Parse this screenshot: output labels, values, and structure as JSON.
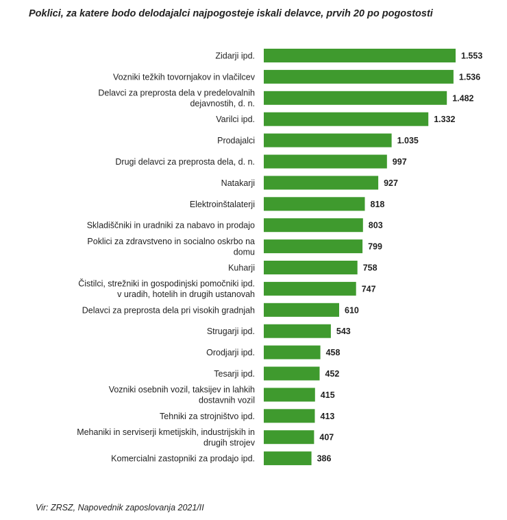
{
  "chart_data": {
    "type": "bar",
    "orientation": "horizontal",
    "title": "Poklici, za katere bodo delodajalci najpogosteje iskali delavce, prvih 20 po pogostosti",
    "categories": [
      [
        "Zidarji ipd."
      ],
      [
        "Vozniki težkih tovornjakov in vlačilcev"
      ],
      [
        "Delavci za preprosta dela v predelovalnih",
        "dejavnostih, d. n."
      ],
      [
        "Varilci ipd."
      ],
      [
        "Prodajalci"
      ],
      [
        "Drugi delavci za preprosta dela, d. n."
      ],
      [
        "Natakarji"
      ],
      [
        "Elektroinštalaterji"
      ],
      [
        "Skladiščniki in uradniki za nabavo in prodajo"
      ],
      [
        "Poklici za zdravstveno in socialno oskrbo na",
        "domu"
      ],
      [
        "Kuharji"
      ],
      [
        "Čistilci, strežniki in gospodinjski pomočniki ipd.",
        "v uradih, hotelih in drugih ustanovah"
      ],
      [
        "Delavci za preprosta dela pri visokih gradnjah"
      ],
      [
        "Strugarji ipd."
      ],
      [
        "Orodjarji ipd."
      ],
      [
        "Tesarji ipd."
      ],
      [
        "Vozniki osebnih vozil, taksijev in lahkih",
        "dostavnih vozil"
      ],
      [
        "Tehniki za strojništvo ipd."
      ],
      [
        "Mehaniki in serviserji kmetijskih, industrijskih in",
        "drugih strojev"
      ],
      [
        "Komercialni zastopniki za prodajo ipd."
      ]
    ],
    "values": [
      1553,
      1536,
      1482,
      1332,
      1035,
      997,
      927,
      818,
      803,
      799,
      758,
      747,
      610,
      543,
      458,
      452,
      415,
      413,
      407,
      386
    ],
    "value_labels": [
      "1.553",
      "1.536",
      "1.482",
      "1.332",
      "1.035",
      "997",
      "927",
      "818",
      "803",
      "799",
      "758",
      "747",
      "610",
      "543",
      "458",
      "452",
      "415",
      "413",
      "407",
      "386"
    ],
    "xlabel": "",
    "ylabel": "",
    "xlim": [
      0,
      1553
    ],
    "grid": false,
    "legend": "none",
    "bar_color": "#3f9a2e"
  },
  "source": "Vir: ZRSZ, Napovednik zaposlovanja 2021/II"
}
